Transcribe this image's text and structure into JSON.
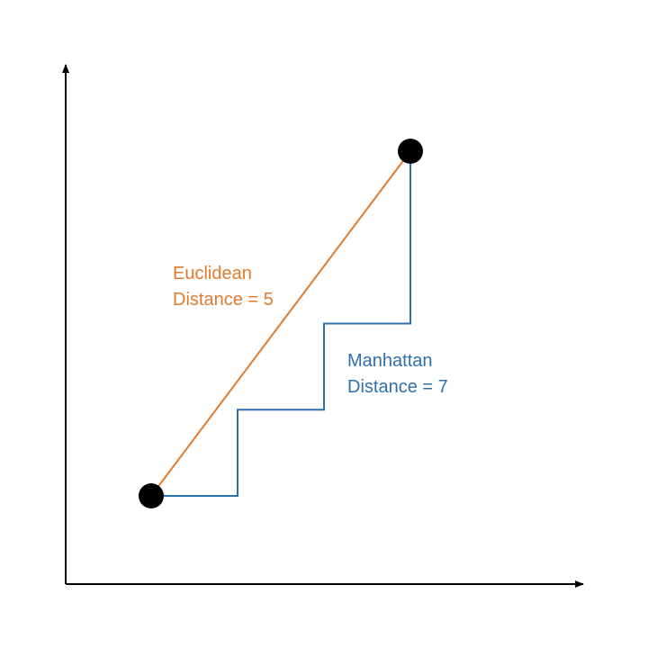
{
  "colors": {
    "euclidean": "#E07B2E",
    "manhattan": "#2E6FAE",
    "axis": "#000000",
    "point": "#000000"
  },
  "labels": {
    "euclidean": {
      "line1": "Euclidean",
      "line2": "Distance = 5"
    },
    "manhattan": {
      "line1": "Manhattan",
      "line2": "Distance = 7"
    }
  },
  "geometry": {
    "point_a": [
      0,
      0
    ],
    "point_b": [
      3,
      4
    ],
    "staircase_path": [
      [
        0,
        0
      ],
      [
        1,
        0
      ],
      [
        1,
        1
      ],
      [
        2,
        1
      ],
      [
        2,
        2
      ],
      [
        3,
        2
      ],
      [
        3,
        4
      ]
    ]
  }
}
